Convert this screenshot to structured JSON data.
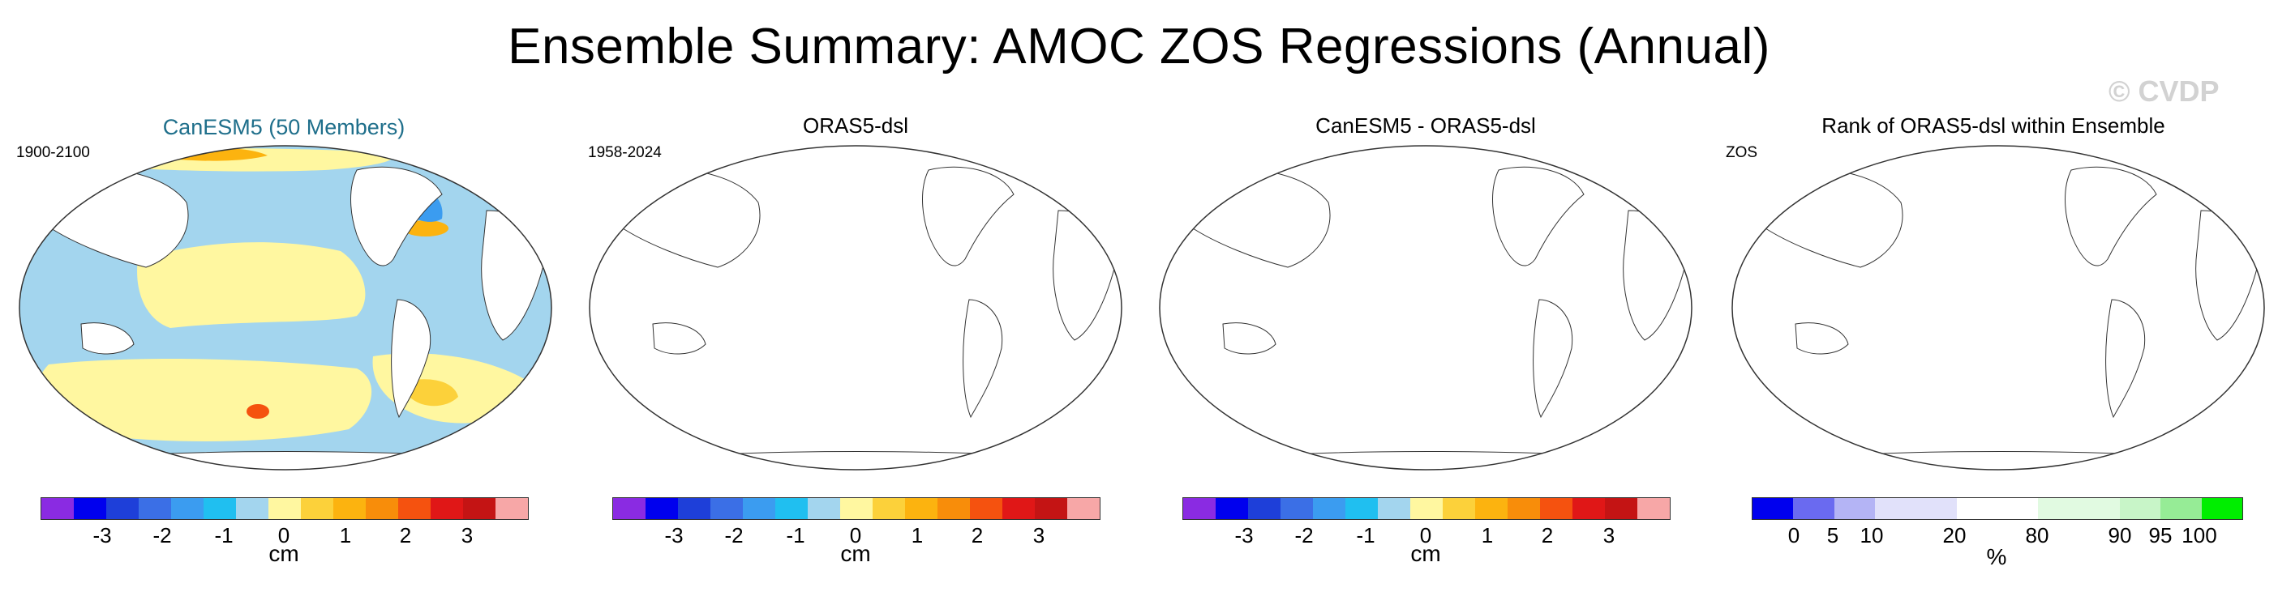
{
  "title": "Ensemble Summary: AMOC ZOS Regressions (Annual)",
  "watermark": "© CVDP",
  "panels": [
    {
      "title": "CanESM5 (50 Members)",
      "left_string": "1900-2100",
      "colorbar": {
        "colors": [
          "#8a2be2",
          "#0000ee",
          "#1e3fd9",
          "#3b6fe6",
          "#3b9cf0",
          "#20bff0",
          "#a3d5ee",
          "#fff7a0",
          "#fcd13a",
          "#fcb30f",
          "#f88d0a",
          "#f5520f",
          "#e01717",
          "#c41414",
          "#f7a7a7"
        ],
        "ticks": [
          "-3",
          "-2",
          "-1",
          "0",
          "1",
          "2",
          "3"
        ],
        "unit": "cm"
      }
    },
    {
      "title": "ORAS5-dsl",
      "left_string": "1958-2024",
      "colorbar": {
        "colors": [
          "#8a2be2",
          "#0000ee",
          "#1e3fd9",
          "#3b6fe6",
          "#3b9cf0",
          "#20bff0",
          "#a3d5ee",
          "#fff7a0",
          "#fcd13a",
          "#fcb30f",
          "#f88d0a",
          "#f5520f",
          "#e01717",
          "#c41414",
          "#f7a7a7"
        ],
        "ticks": [
          "-3",
          "-2",
          "-1",
          "0",
          "1",
          "2",
          "3"
        ],
        "unit": "cm"
      }
    },
    {
      "title": "CanESM5 - ORAS5-dsl",
      "left_string": "",
      "colorbar": {
        "colors": [
          "#8a2be2",
          "#0000ee",
          "#1e3fd9",
          "#3b6fe6",
          "#3b9cf0",
          "#20bff0",
          "#a3d5ee",
          "#fff7a0",
          "#fcd13a",
          "#fcb30f",
          "#f88d0a",
          "#f5520f",
          "#e01717",
          "#c41414",
          "#f7a7a7"
        ],
        "ticks": [
          "-3",
          "-2",
          "-1",
          "0",
          "1",
          "2",
          "3"
        ],
        "unit": "cm"
      }
    },
    {
      "title": "Rank of ORAS5-dsl within Ensemble",
      "left_string": "ZOS",
      "colorbar": {
        "colors": [
          "#0000ee",
          "#6a6af0",
          "#b4b4f5",
          "#e1e1fa",
          "#e1e1fa",
          "#ffffff",
          "#ffffff",
          "#e1fae1",
          "#c8f5c8",
          "#96ec96",
          "#00ee00"
        ],
        "ticks": [
          "0",
          "5",
          "10",
          "20",
          "80",
          "90",
          "95",
          "100"
        ],
        "unit": "%"
      }
    }
  ],
  "map_legend": {
    "ocean_positive": "#fff7a0",
    "ocean_negative": "#a3d5ee",
    "strong_positive": "#fcd13a",
    "strong_negative": "#3b9cf0"
  }
}
